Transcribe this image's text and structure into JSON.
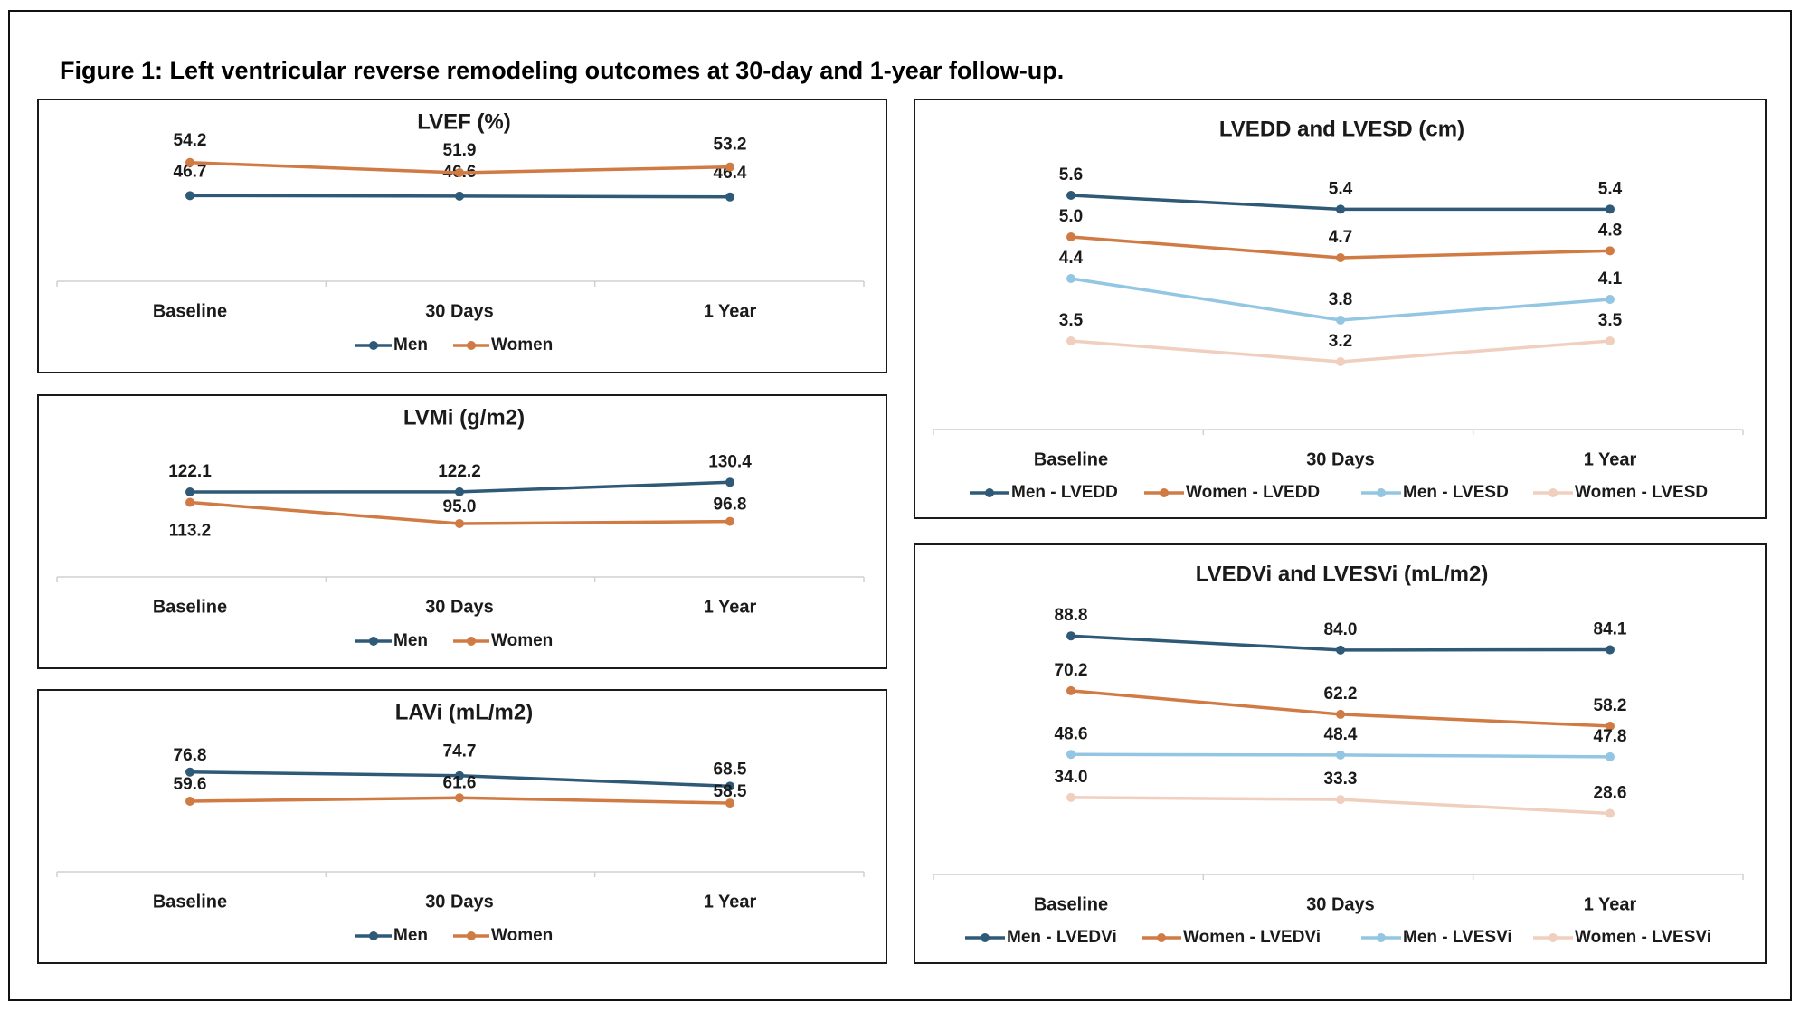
{
  "figure_title": "Figure 1: Left ventricular reverse remodeling outcomes at 30-day and 1-year follow-up.",
  "colors": {
    "men": "#2e5a78",
    "women": "#d07a44",
    "men_light": "#93c6e2",
    "women_light": "#f0cfbe",
    "axis": "#d0d0d0",
    "text": "#1a1a1a"
  },
  "chart_data": [
    {
      "id": "lvef",
      "type": "line",
      "title": "LVEF (%)",
      "categories": [
        "Baseline",
        "30 Days",
        "1 Year"
      ],
      "series": [
        {
          "name": "Men",
          "color_key": "men",
          "values": [
            46.7,
            46.6,
            46.4
          ],
          "label_values": [
            "46.7",
            "46.6",
            "46.4"
          ]
        },
        {
          "name": "Women",
          "color_key": "women",
          "values": [
            54.2,
            51.9,
            53.2
          ],
          "label_values": [
            "54.2",
            "51.9",
            "53.2"
          ]
        }
      ],
      "ylim": [
        40,
        56
      ],
      "legend": "bottom"
    },
    {
      "id": "lvmi",
      "type": "line",
      "title": "LVMi (g/m2)",
      "categories": [
        "Baseline",
        "30 Days",
        "1 Year"
      ],
      "series": [
        {
          "name": "Men",
          "color_key": "men",
          "values": [
            122.1,
            122.2,
            130.4
          ],
          "label_values": [
            "122.1",
            "122.2",
            "130.4"
          ]
        },
        {
          "name": "Women",
          "color_key": "women",
          "values": [
            113.2,
            95.0,
            96.8
          ],
          "label_values": [
            "113.2",
            "95.0",
            "96.8"
          ]
        }
      ],
      "ylim": [
        88,
        150
      ],
      "legend": "bottom"
    },
    {
      "id": "lavi",
      "type": "line",
      "title": "LAVi (mL/m2)",
      "categories": [
        "Baseline",
        "30 Days",
        "1 Year"
      ],
      "series": [
        {
          "name": "Men",
          "color_key": "men",
          "values": [
            76.8,
            74.7,
            68.5
          ],
          "label_values": [
            "76.8",
            "74.7",
            "68.5"
          ]
        },
        {
          "name": "Women",
          "color_key": "women",
          "values": [
            59.6,
            61.6,
            58.5
          ],
          "label_values": [
            "59.6",
            "61.6",
            "58.5"
          ]
        }
      ],
      "ylim": [
        50,
        82
      ],
      "legend": "bottom"
    },
    {
      "id": "lvedd",
      "type": "line",
      "title": "LVEDD and LVESD (cm)",
      "categories": [
        "Baseline",
        "30 Days",
        "1 Year"
      ],
      "series": [
        {
          "name": "Men - LVEDD",
          "color_key": "men",
          "values": [
            5.6,
            5.4,
            5.4
          ],
          "label_values": [
            "5.6",
            "5.4",
            "5.4"
          ]
        },
        {
          "name": "Women - LVEDD",
          "color_key": "women",
          "values": [
            5.0,
            4.7,
            4.8
          ],
          "label_values": [
            "5.0",
            "4.7",
            "4.8"
          ]
        },
        {
          "name": "Men - LVESD",
          "color_key": "men_light",
          "values": [
            4.4,
            3.8,
            4.1
          ],
          "label_values": [
            "4.4",
            "3.8",
            "4.1"
          ]
        },
        {
          "name": "Women - LVESD",
          "color_key": "women_light",
          "values": [
            3.5,
            3.2,
            3.5
          ],
          "label_values": [
            "3.5",
            "3.2",
            "3.5"
          ]
        }
      ],
      "ylim": [
        2.9,
        5.9
      ],
      "legend": "bottom"
    },
    {
      "id": "lvedvi",
      "type": "line",
      "title": "LVEDVi and LVESVi (mL/m2)",
      "categories": [
        "Baseline",
        "30 Days",
        "1 Year"
      ],
      "series": [
        {
          "name": "Men - LVEDVi",
          "color_key": "men",
          "values": [
            88.8,
            84.0,
            84.1
          ],
          "label_values": [
            "88.8",
            "84.0",
            "84.1"
          ]
        },
        {
          "name": "Women - LVEDVi",
          "color_key": "women",
          "values": [
            70.2,
            62.2,
            58.2
          ],
          "label_values": [
            "70.2",
            "62.2",
            "58.2"
          ]
        },
        {
          "name": "Men - LVESVi",
          "color_key": "men_light",
          "values": [
            48.6,
            48.4,
            47.8
          ],
          "label_values": [
            "48.6",
            "48.4",
            "47.8"
          ]
        },
        {
          "name": "Women - LVESVi",
          "color_key": "women_light",
          "values": [
            34.0,
            33.3,
            28.6
          ],
          "label_values": [
            "34.0",
            "33.3",
            "28.6"
          ]
        }
      ],
      "ylim": [
        22,
        95
      ],
      "legend": "bottom"
    }
  ]
}
